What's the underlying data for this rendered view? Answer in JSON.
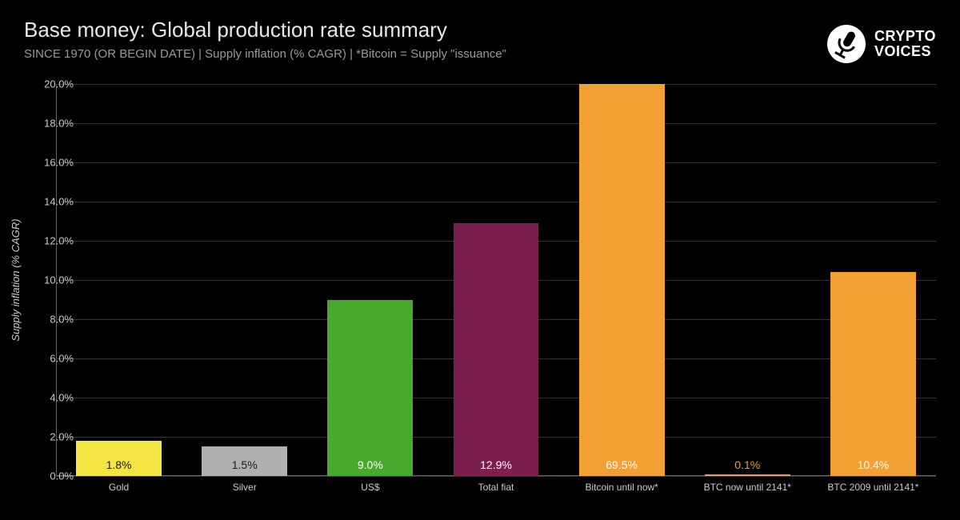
{
  "header": {
    "title": "Base money: Global production rate summary",
    "subtitle": "SINCE 1970 (OR BEGIN DATE) | Supply inflation (% CAGR) | *Bitcoin = Supply \"issuance\""
  },
  "logo": {
    "line1": "CRYPTO",
    "line2": "VOICES"
  },
  "chart": {
    "type": "bar",
    "yaxis_label": "Supply inflation (% CAGR)",
    "background_color": "#000000",
    "grid_color": "#333333",
    "axis_text_color": "#cccccc",
    "title_color": "#e8e8e8",
    "subtitle_color": "#9a9a9a",
    "title_fontsize": 26,
    "subtitle_fontsize": 15,
    "tick_fontsize": 13,
    "bar_label_fontsize": 14,
    "ylim": [
      0,
      20
    ],
    "ytick_step": 2,
    "yticks": [
      "0.0%",
      "2.0%",
      "4.0%",
      "6.0%",
      "8.0%",
      "10.0%",
      "12.0%",
      "14.0%",
      "16.0%",
      "18.0%",
      "20.0%"
    ],
    "bar_width_ratio": 0.68,
    "bars": [
      {
        "category": "Gold",
        "value": 1.8,
        "display": "1.8%",
        "color": "#f4e542",
        "label_color": "#1a1a1a",
        "clipped": false,
        "label_pos": "inside"
      },
      {
        "category": "Silver",
        "value": 1.5,
        "display": "1.5%",
        "color": "#b0b0b0",
        "label_color": "#1a1a1a",
        "clipped": false,
        "label_pos": "inside"
      },
      {
        "category": "US$",
        "value": 9.0,
        "display": "9.0%",
        "color": "#4aa82f",
        "label_color": "#ffffff",
        "clipped": false,
        "label_pos": "inside"
      },
      {
        "category": "Total fiat",
        "value": 12.9,
        "display": "12.9%",
        "color": "#7b1f4e",
        "label_color": "#ffffff",
        "clipped": false,
        "label_pos": "inside"
      },
      {
        "category": "Bitcoin until now*",
        "value": 69.5,
        "display": "69.5%",
        "color": "#f2a033",
        "label_color": "#ffffff",
        "clipped": true,
        "label_pos": "inside"
      },
      {
        "category": "BTC now until 2141*",
        "value": 0.1,
        "display": "0.1%",
        "color": "#f2a033",
        "label_color": "#f2a033",
        "clipped": false,
        "label_pos": "above"
      },
      {
        "category": "BTC 2009 until 2141*",
        "value": 10.4,
        "display": "10.4%",
        "color": "#f2a033",
        "label_color": "#ffffff",
        "clipped": false,
        "label_pos": "inside"
      }
    ]
  }
}
